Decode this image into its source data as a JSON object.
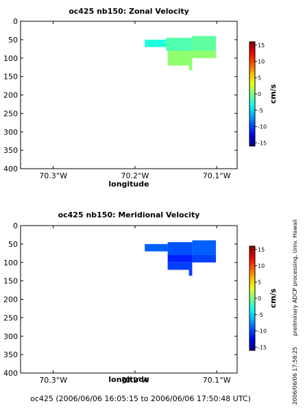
{
  "chart_data": [
    {
      "type": "heatmap",
      "title": "oc425 nb150: Zonal Velocity",
      "xlabel": "longitude",
      "ylabel": "",
      "x_ticks": [
        {
          "value": -70.3,
          "label": "70.3°W"
        },
        {
          "value": -70.2,
          "label": "70.2°W"
        },
        {
          "value": -70.1,
          "label": "70.1°W"
        }
      ],
      "y_ticks": [
        0,
        50,
        100,
        150,
        200,
        250,
        300,
        350,
        400
      ],
      "xlim": [
        -70.34,
        -70.075
      ],
      "ylim": [
        400,
        0
      ],
      "grid": false,
      "colorbar": {
        "label": "cm/s",
        "ticks": [
          15,
          10,
          5,
          0,
          -5,
          -10,
          -15
        ],
        "range": [
          -16,
          16
        ],
        "colormap": "jet"
      },
      "cells": [
        {
          "x0": -70.188,
          "x1": -70.162,
          "y0": 50,
          "y1": 70,
          "value": -3
        },
        {
          "x0": -70.162,
          "x1": -70.13,
          "y0": 45,
          "y1": 80,
          "value": -1.5
        },
        {
          "x0": -70.13,
          "x1": -70.101,
          "y0": 40,
          "y1": 80,
          "value": -1
        },
        {
          "x0": -70.16,
          "x1": -70.13,
          "y0": 80,
          "y1": 120,
          "value": 0.5
        },
        {
          "x0": -70.13,
          "x1": -70.101,
          "y0": 80,
          "y1": 100,
          "value": 0.5
        },
        {
          "x0": -70.134,
          "x1": -70.13,
          "y0": 120,
          "y1": 133,
          "value": 0.5
        }
      ]
    },
    {
      "type": "heatmap",
      "title": "oc425 nb150: Meridional Velocity",
      "xlabel": "longitude",
      "ylabel": "",
      "x_ticks": [
        {
          "value": -70.3,
          "label": "70.3°W"
        },
        {
          "value": -70.2,
          "label": "70.2°W"
        },
        {
          "value": -70.1,
          "label": "70.1°W"
        }
      ],
      "y_ticks": [
        0,
        50,
        100,
        150,
        200,
        250,
        300,
        350,
        400
      ],
      "xlim": [
        -70.34,
        -70.075
      ],
      "ylim": [
        400,
        0
      ],
      "grid": false,
      "colorbar": {
        "label": "cm/s",
        "ticks": [
          15,
          10,
          5,
          0,
          -5,
          -10,
          -15
        ],
        "range": [
          -16,
          16
        ],
        "colormap": "jet"
      },
      "cells": [
        {
          "x0": -70.188,
          "x1": -70.16,
          "y0": 50,
          "y1": 70,
          "value": -9
        },
        {
          "x0": -70.16,
          "x1": -70.13,
          "y0": 45,
          "y1": 80,
          "value": -9.5
        },
        {
          "x0": -70.13,
          "x1": -70.101,
          "y0": 40,
          "y1": 80,
          "value": -9
        },
        {
          "x0": -70.16,
          "x1": -70.13,
          "y0": 80,
          "y1": 100,
          "value": -11
        },
        {
          "x0": -70.13,
          "x1": -70.101,
          "y0": 80,
          "y1": 100,
          "value": -10
        },
        {
          "x0": -70.16,
          "x1": -70.13,
          "y0": 100,
          "y1": 120,
          "value": -10
        },
        {
          "x0": -70.134,
          "x1": -70.13,
          "y0": 120,
          "y1": 136,
          "value": -10
        }
      ]
    }
  ],
  "footer": {
    "time_range": "oc425 (2006/06/06 16:05:15 to 2006/06/06 17:50:48 UTC)",
    "credit": "preliminary ADCP processing,  Univ. Hawaii",
    "stamp": "2006/06/06 17:58:25"
  }
}
